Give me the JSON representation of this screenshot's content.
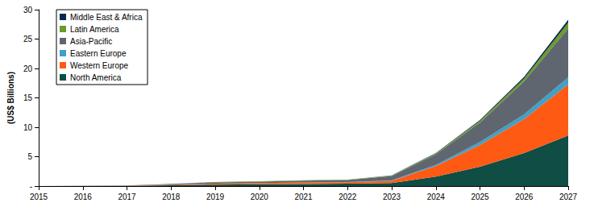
{
  "chart_data": {
    "type": "area",
    "stacked": true,
    "grid": false,
    "legend": "upper left",
    "y_label": "(US$ Billions)",
    "categories": [
      "2015",
      "2016",
      "2017",
      "2018",
      "2019",
      "2020",
      "2021",
      "2022",
      "2023",
      "2024",
      "2025",
      "2026",
      "2027"
    ],
    "ylim": [
      0,
      30
    ],
    "yticks": [
      {
        "value": 0,
        "label": "-"
      },
      5,
      10,
      15,
      20,
      25,
      30
    ],
    "series": [
      {
        "name": "North America",
        "color": "#0f4d45",
        "values": [
          0,
          0.02,
          0.05,
          0.15,
          0.25,
          0.3,
          0.35,
          0.4,
          0.5,
          1.6,
          3.3,
          5.6,
          8.6
        ]
      },
      {
        "name": "Western Europe",
        "color": "#ff5a14",
        "values": [
          0,
          0.01,
          0.03,
          0.1,
          0.15,
          0.2,
          0.25,
          0.25,
          0.4,
          1.8,
          3.7,
          5.8,
          8.7
        ]
      },
      {
        "name": "Eastern Europe",
        "color": "#3fa0c8",
        "values": [
          0,
          0,
          0.005,
          0.01,
          0.02,
          0.02,
          0.03,
          0.03,
          0.05,
          0.2,
          0.5,
          0.8,
          1.2
        ]
      },
      {
        "name": "Asia-Pacific",
        "color": "#5f6670",
        "values": [
          0,
          0.02,
          0.02,
          0.1,
          0.2,
          0.25,
          0.3,
          0.35,
          0.75,
          1.8,
          3.3,
          5.6,
          8.3
        ]
      },
      {
        "name": "Latin America",
        "color": "#6a9a2c",
        "values": [
          0,
          0,
          0,
          0.02,
          0.03,
          0.04,
          0.05,
          0.05,
          0.08,
          0.15,
          0.3,
          0.5,
          1.0
        ]
      },
      {
        "name": "Middle East & Africa",
        "color": "#0b2a4a",
        "values": [
          0,
          0,
          0,
          0.01,
          0.02,
          0.02,
          0.03,
          0.03,
          0.04,
          0.08,
          0.15,
          0.25,
          0.5
        ]
      }
    ]
  }
}
